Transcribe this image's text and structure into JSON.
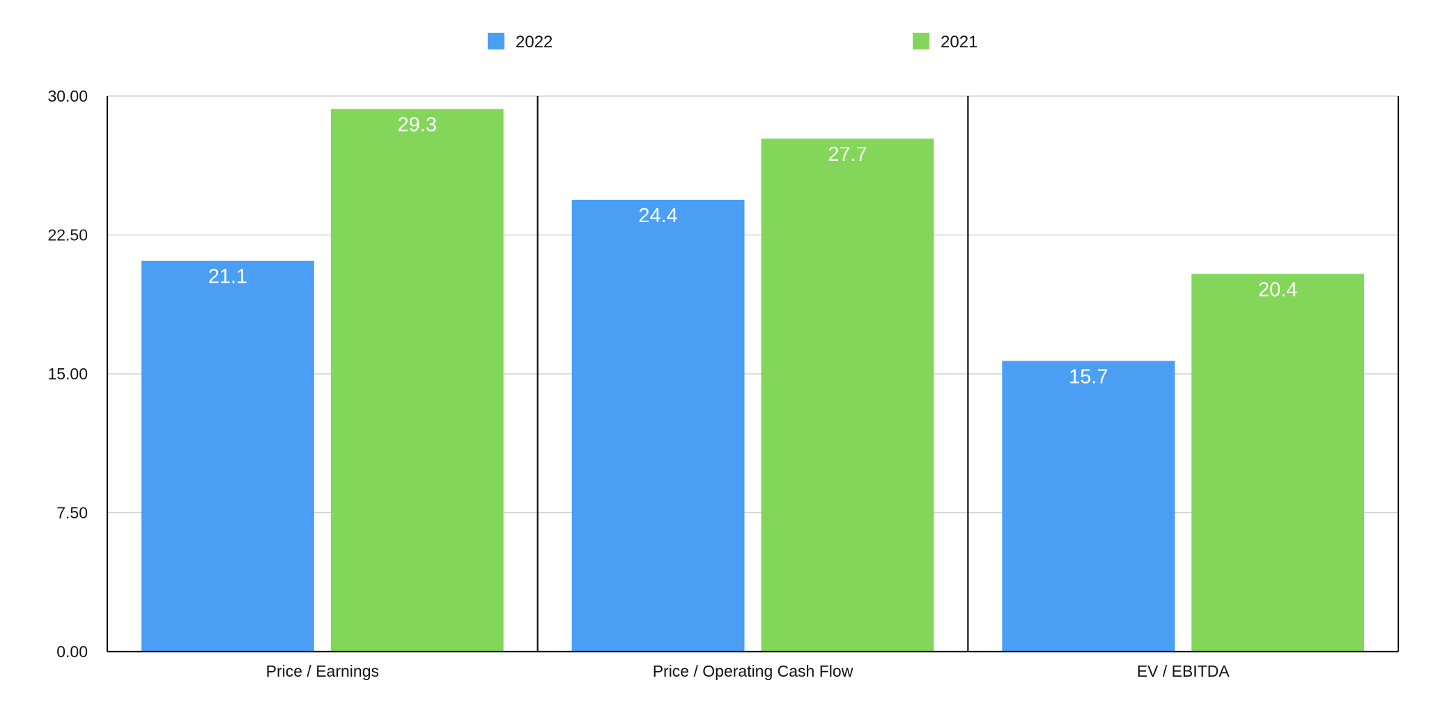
{
  "chart_data": {
    "type": "bar",
    "categories": [
      "Price / Earnings",
      "Price / Operating Cash Flow",
      "EV / EBITDA"
    ],
    "series": [
      {
        "name": "2022",
        "values": [
          21.1,
          24.4,
          15.7
        ],
        "color": "#4a9ff5",
        "labels": [
          "21.1",
          "24.4",
          "15.7"
        ]
      },
      {
        "name": "2021",
        "values": [
          29.3,
          27.7,
          20.4
        ],
        "color": "#84d65a",
        "labels": [
          "29.3",
          "27.7",
          "20.4"
        ]
      }
    ],
    "ylim": [
      0,
      30
    ],
    "yticks": [
      0,
      7.5,
      15,
      22.5,
      30
    ],
    "ytick_labels": [
      "0.00",
      "7.50",
      "15.00",
      "22.50",
      "30.00"
    ],
    "grid": true,
    "legend_position": "top-center",
    "data_labels": "inside-top",
    "title": "",
    "xlabel": "",
    "ylabel": ""
  }
}
